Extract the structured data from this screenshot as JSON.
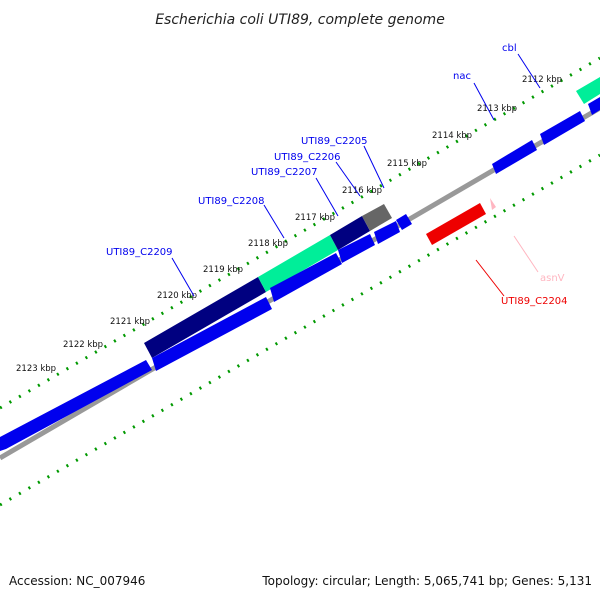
{
  "title": "Escherichia coli UTI89, complete genome",
  "footer": {
    "accession": "Accession: NC_007946",
    "summary": "Topology: circular; Length: 5,065,741 bp; Genes: 5,131"
  },
  "colors": {
    "forward_cds": "#0000ee",
    "reverse_cds": "#ee0000",
    "trna": "#ffb6c1",
    "gc_high": "#00ee99",
    "gc_low": "#000080",
    "gc_mid": "#666666",
    "backbone": "#888888",
    "ticks": "#009900"
  },
  "ticks": [
    {
      "label": "2112 kbp"
    },
    {
      "label": "2113 kbp"
    },
    {
      "label": "2114 kbp"
    },
    {
      "label": "2115 kbp"
    },
    {
      "label": "2116 kbp"
    },
    {
      "label": "2117 kbp"
    },
    {
      "label": "2118 kbp"
    },
    {
      "label": "2119 kbp"
    },
    {
      "label": "2120 kbp"
    },
    {
      "label": "2121 kbp"
    },
    {
      "label": "2122 kbp"
    },
    {
      "label": "2123 kbp"
    }
  ],
  "labels": [
    {
      "name": "cbl",
      "strand": "forward"
    },
    {
      "name": "nac",
      "strand": "forward"
    },
    {
      "name": "UTI89_C2205",
      "strand": "forward"
    },
    {
      "name": "UTI89_C2206",
      "strand": "forward"
    },
    {
      "name": "UTI89_C2207",
      "strand": "forward"
    },
    {
      "name": "UTI89_C2208",
      "strand": "forward"
    },
    {
      "name": "UTI89_C2209",
      "strand": "forward"
    },
    {
      "name": "asnV",
      "strand": "trna"
    },
    {
      "name": "UTI89_C2204",
      "strand": "reverse"
    }
  ]
}
